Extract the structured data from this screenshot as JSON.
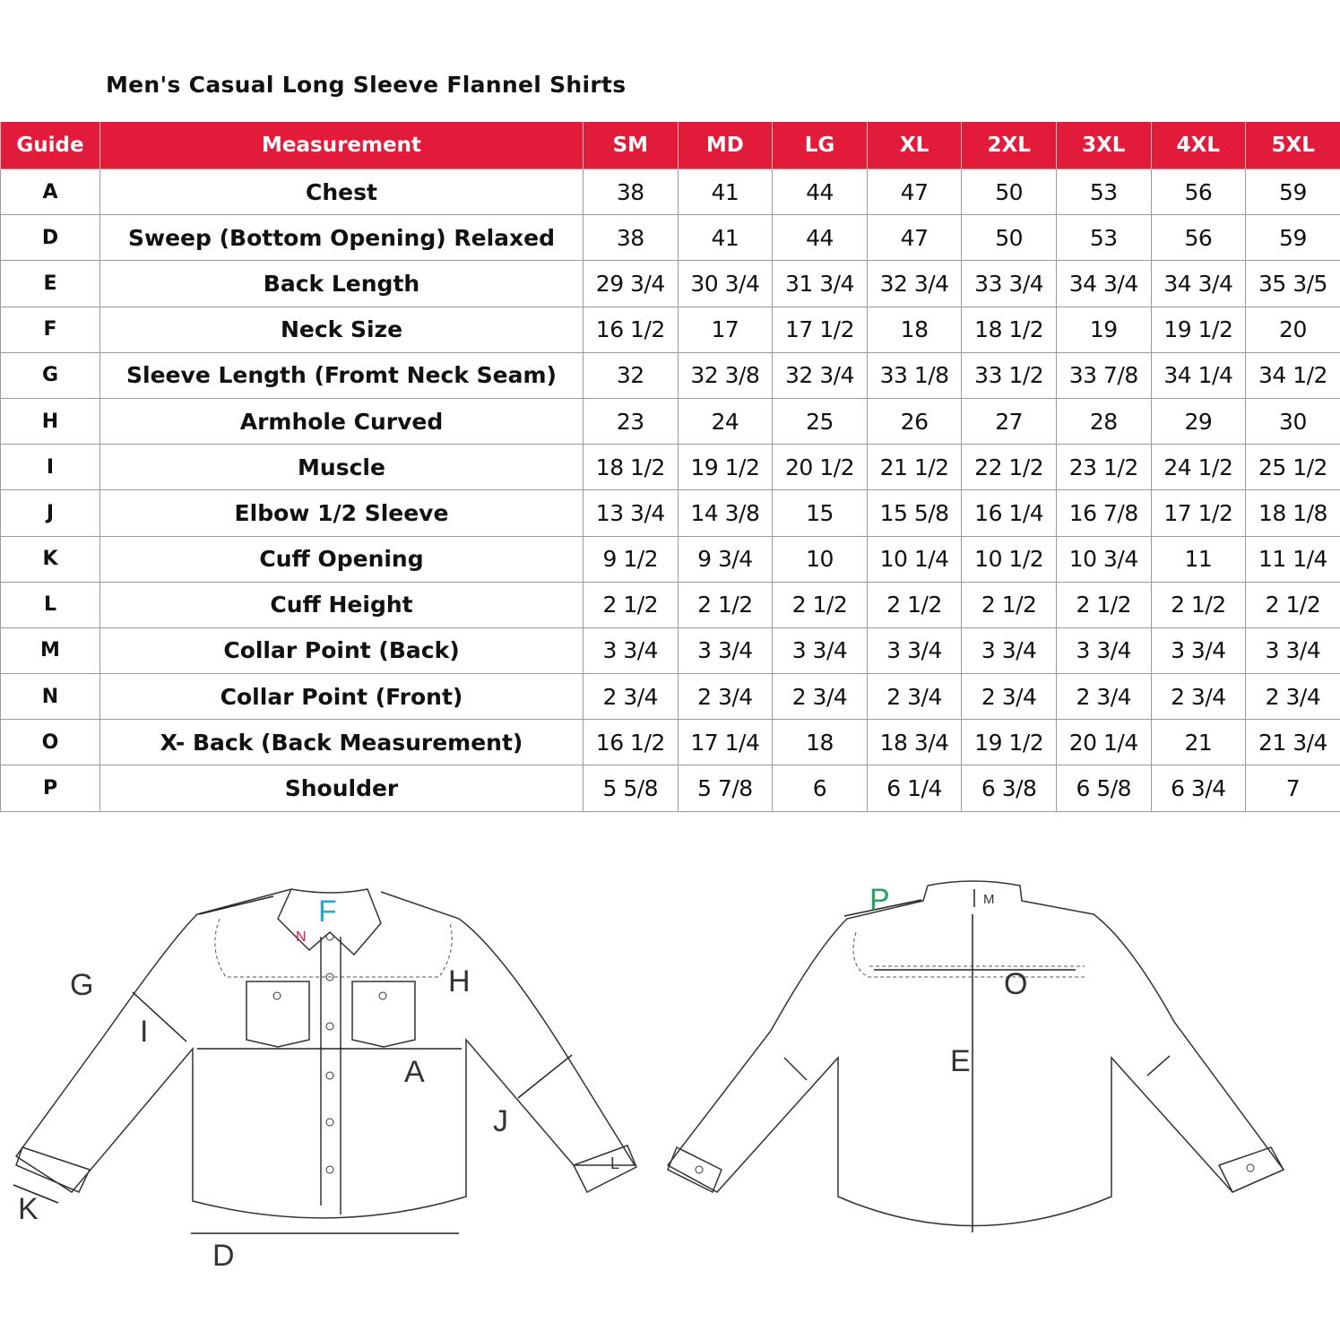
{
  "title": "Men's Casual Long Sleeve Flannel Shirts",
  "colors": {
    "header_bg": "#e31b3a",
    "header_text": "#ffffff",
    "neck_label": "#2aa7c9",
    "collar_front_label": "#e31b3a",
    "shoulder_label": "#2aa060"
  },
  "table": {
    "headers": [
      "Guide",
      "Measurement",
      "SM",
      "MD",
      "LG",
      "XL",
      "2XL",
      "3XL",
      "4XL",
      "5XL"
    ],
    "rows": [
      {
        "guide": "A",
        "measurement": "Chest",
        "values": [
          "38",
          "41",
          "44",
          "47",
          "50",
          "53",
          "56",
          "59"
        ]
      },
      {
        "guide": "D",
        "measurement": "Sweep (Bottom Opening)  Relaxed",
        "values": [
          "38",
          "41",
          "44",
          "47",
          "50",
          "53",
          "56",
          "59"
        ]
      },
      {
        "guide": "E",
        "measurement": "Back Length",
        "values": [
          "29 3/4",
          "30 3/4",
          "31 3/4",
          "32 3/4",
          "33 3/4",
          "34 3/4",
          "34 3/4",
          "35 3/5"
        ]
      },
      {
        "guide": "F",
        "measurement": "Neck Size",
        "values": [
          "16 1/2",
          "17",
          "17 1/2",
          "18",
          "18 1/2",
          "19",
          "19 1/2",
          "20"
        ]
      },
      {
        "guide": "G",
        "measurement": "Sleeve Length (Fromt Neck Seam)",
        "values": [
          "32",
          "32 3/8",
          "32 3/4",
          "33 1/8",
          "33 1/2",
          "33 7/8",
          "34 1/4",
          "34 1/2"
        ]
      },
      {
        "guide": "H",
        "measurement": "Armhole Curved",
        "values": [
          "23",
          "24",
          "25",
          "26",
          "27",
          "28",
          "29",
          "30"
        ]
      },
      {
        "guide": "I",
        "measurement": "Muscle",
        "values": [
          "18 1/2",
          "19 1/2",
          "20 1/2",
          "21 1/2",
          "22 1/2",
          "23 1/2",
          "24 1/2",
          "25 1/2"
        ]
      },
      {
        "guide": "J",
        "measurement": "Elbow 1/2 Sleeve",
        "values": [
          "13 3/4",
          "14 3/8",
          "15",
          "15 5/8",
          "16 1/4",
          "16 7/8",
          "17 1/2",
          "18 1/8"
        ]
      },
      {
        "guide": "K",
        "measurement": "Cuff Opening",
        "values": [
          "9 1/2",
          "9 3/4",
          "10",
          "10 1/4",
          "10 1/2",
          "10 3/4",
          "11",
          "11 1/4"
        ]
      },
      {
        "guide": "L",
        "measurement": "Cuff Height",
        "values": [
          "2 1/2",
          "2 1/2",
          "2 1/2",
          "2 1/2",
          "2 1/2",
          "2 1/2",
          "2 1/2",
          "2 1/2"
        ]
      },
      {
        "guide": "M",
        "measurement": "Collar Point (Back)",
        "values": [
          "3 3/4",
          "3 3/4",
          "3 3/4",
          "3 3/4",
          "3 3/4",
          "3 3/4",
          "3 3/4",
          "3 3/4"
        ]
      },
      {
        "guide": "N",
        "measurement": "Collar Point (Front)",
        "values": [
          "2 3/4",
          "2 3/4",
          "2 3/4",
          "2 3/4",
          "2 3/4",
          "2 3/4",
          "2 3/4",
          "2 3/4"
        ]
      },
      {
        "guide": "O",
        "measurement": "X- Back (Back Measurement)",
        "values": [
          "16 1/2",
          "17 1/4",
          "18",
          "18 3/4",
          "19 1/2",
          "20 1/4",
          "21",
          "21 3/4"
        ]
      },
      {
        "guide": "P",
        "measurement": "Shoulder",
        "values": [
          "5 5/8",
          "5 7/8",
          "6",
          "6 1/4",
          "6 3/8",
          "6 5/8",
          "6 3/4",
          "7"
        ]
      }
    ]
  },
  "diagram": {
    "front_labels": {
      "G": "G",
      "I": "I",
      "F": "F",
      "N": "N",
      "H": "H",
      "A": "A",
      "J": "J",
      "K": "K",
      "L": "L",
      "D": "D"
    },
    "back_labels": {
      "P": "P",
      "M": "M",
      "O": "O",
      "E": "E"
    }
  }
}
